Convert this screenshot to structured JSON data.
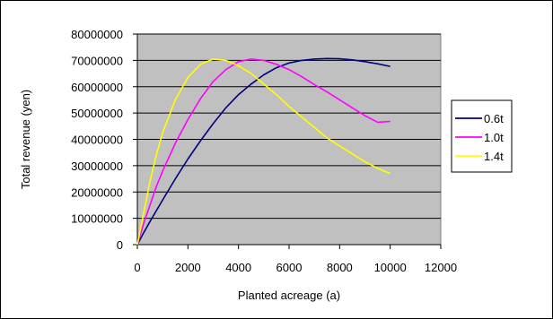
{
  "chart_data": {
    "type": "line",
    "title": "",
    "xlabel": "Planted acreage (a)",
    "ylabel": "Total revenue (yen)",
    "xlim": [
      0,
      12000
    ],
    "ylim": [
      0,
      80000000
    ],
    "xticks": [
      0,
      2000,
      4000,
      6000,
      8000,
      10000,
      12000
    ],
    "yticks": [
      0,
      10000000,
      20000000,
      30000000,
      40000000,
      50000000,
      60000000,
      70000000,
      80000000
    ],
    "grid": "horizontal",
    "plot_background": "#c0c0c0",
    "legend_position": "right",
    "series": [
      {
        "name": "0.6t",
        "color": "#000080",
        "x": [
          0,
          250,
          500,
          1000,
          1500,
          2000,
          2500,
          3000,
          3500,
          4000,
          4500,
          5000,
          5500,
          6000,
          6500,
          7000,
          7500,
          8000,
          8500,
          9000,
          9500,
          10000
        ],
        "y": [
          0,
          4500000,
          8800000,
          17000000,
          25000000,
          32500000,
          39500000,
          46000000,
          52000000,
          57000000,
          61000000,
          64500000,
          67200000,
          69000000,
          70000000,
          70500000,
          70700000,
          70600000,
          70200000,
          69500000,
          68700000,
          67700000
        ]
      },
      {
        "name": "1.0t",
        "color": "#ff00ff",
        "x": [
          0,
          250,
          500,
          750,
          1000,
          1500,
          2000,
          2500,
          3000,
          3500,
          4000,
          4500,
          5000,
          5500,
          6000,
          6500,
          7000,
          7500,
          8000,
          8500,
          9000,
          9500,
          10000
        ],
        "y": [
          0,
          8000000,
          15000000,
          22000000,
          28000000,
          38500000,
          47500000,
          55500000,
          62000000,
          66500000,
          69500000,
          70500000,
          70000000,
          68500000,
          66500000,
          63800000,
          60800000,
          58000000,
          55000000,
          52000000,
          49000000,
          46500000,
          46800000
        ]
      },
      {
        "name": "1.4t",
        "color": "#ffff00",
        "x": [
          0,
          250,
          500,
          750,
          1000,
          1500,
          2000,
          2500,
          3000,
          3500,
          4000,
          4500,
          5000,
          5500,
          6000,
          6500,
          7000,
          7500,
          8000,
          8500,
          9000,
          9500,
          10000
        ],
        "y": [
          0,
          12000000,
          24000000,
          34000000,
          42500000,
          55000000,
          63500000,
          68500000,
          70500000,
          70000000,
          68000000,
          65000000,
          61000000,
          57000000,
          52500000,
          48500000,
          44500000,
          40500000,
          37500000,
          34500000,
          31500000,
          29000000,
          27000000
        ]
      }
    ]
  }
}
